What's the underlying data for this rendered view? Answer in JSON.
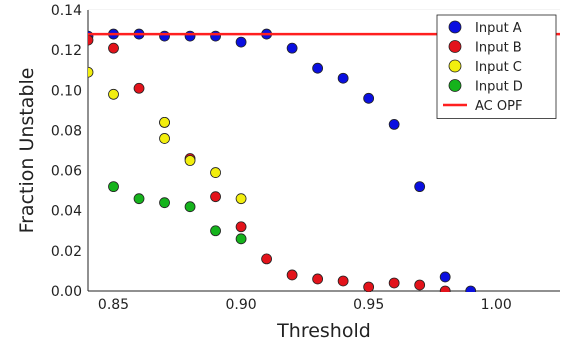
{
  "chart_data": {
    "type": "scatter",
    "title": "",
    "xlabel": "Threshold",
    "ylabel": "Fraction Unstable",
    "xlim": [
      0.84,
      1.025
    ],
    "ylim": [
      0.0,
      0.14
    ],
    "xticks": [
      0.85,
      0.9,
      0.95,
      1.0
    ],
    "xtick_labels": [
      "0.85",
      "0.90",
      "0.95",
      "1.00"
    ],
    "yticks": [
      0.0,
      0.02,
      0.04,
      0.06,
      0.08,
      0.1,
      0.12,
      0.14
    ],
    "ytick_labels": [
      "0.00",
      "0.02",
      "0.04",
      "0.06",
      "0.08",
      "0.10",
      "0.12",
      "0.14"
    ],
    "grid": true,
    "legend_position": "top-right",
    "series": [
      {
        "name": "Input A",
        "kind": "points",
        "color": "#0a0fe0",
        "x": [
          0.84,
          0.85,
          0.86,
          0.87,
          0.88,
          0.89,
          0.9,
          0.91,
          0.92,
          0.93,
          0.94,
          0.95,
          0.96,
          0.97,
          0.98,
          0.99
        ],
        "y": [
          0.127,
          0.128,
          0.128,
          0.127,
          0.127,
          0.127,
          0.124,
          0.128,
          0.121,
          0.111,
          0.106,
          0.096,
          0.083,
          0.052,
          0.007,
          0.0
        ]
      },
      {
        "name": "Input B",
        "kind": "points",
        "color": "#e3131b",
        "x": [
          0.84,
          0.85,
          0.86,
          0.87,
          0.88,
          0.89,
          0.9,
          0.91,
          0.92,
          0.93,
          0.94,
          0.95,
          0.96,
          0.97,
          0.98
        ],
        "y": [
          0.125,
          0.121,
          0.101,
          0.084,
          0.066,
          0.047,
          0.032,
          0.016,
          0.008,
          0.006,
          0.005,
          0.002,
          0.004,
          0.003,
          0.0
        ]
      },
      {
        "name": "Input C",
        "kind": "points",
        "color": "#f2ee0e",
        "x": [
          0.84,
          0.85,
          0.87,
          0.87,
          0.88,
          0.89,
          0.9
        ],
        "y": [
          0.109,
          0.098,
          0.084,
          0.076,
          0.065,
          0.059,
          0.046
        ]
      },
      {
        "name": "Input D",
        "kind": "points",
        "color": "#15b31c",
        "x": [
          0.85,
          0.86,
          0.87,
          0.88,
          0.89,
          0.9
        ],
        "y": [
          0.052,
          0.046,
          0.044,
          0.042,
          0.03,
          0.026
        ]
      },
      {
        "name": "AC OPF",
        "kind": "hline",
        "color": "#ff1f1f",
        "y": 0.128
      }
    ]
  }
}
